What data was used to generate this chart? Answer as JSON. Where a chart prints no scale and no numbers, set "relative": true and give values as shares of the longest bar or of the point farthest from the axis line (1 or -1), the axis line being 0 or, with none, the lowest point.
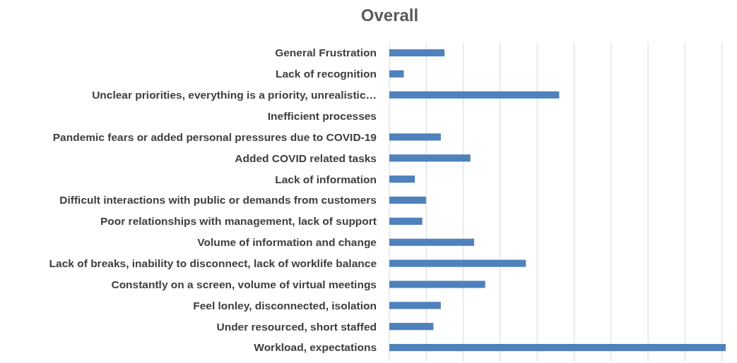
{
  "chart_data": {
    "type": "bar",
    "title": "Overall",
    "orientation": "horizontal",
    "relative": true,
    "grid": "x",
    "color": "#4f81bd",
    "categories": [
      "General Frustration",
      "Lack of recognition",
      "Unclear priorities, everything is a priority, unrealistic…",
      "Inefficient processes",
      "Pandemic fears or added personal pressures due to COVID-19",
      "Added COVID related tasks",
      "Lack of information",
      "Difficult interactions with public or demands from customers",
      "Poor relationships with management, lack of support",
      "Volume of information and change",
      "Lack of breaks, inability to disconnect, lack of worklife balance",
      "Constantly on a screen, volume of virtual meetings",
      "Feel lonley, disconnected, isolation",
      "Under resourced, short staffed",
      "Workload, expectations"
    ],
    "values": [
      0.164,
      0.043,
      0.505,
      0,
      0.153,
      0.241,
      0.076,
      0.109,
      0.098,
      0.252,
      0.406,
      0.285,
      0.153,
      0.131,
      1
    ]
  }
}
